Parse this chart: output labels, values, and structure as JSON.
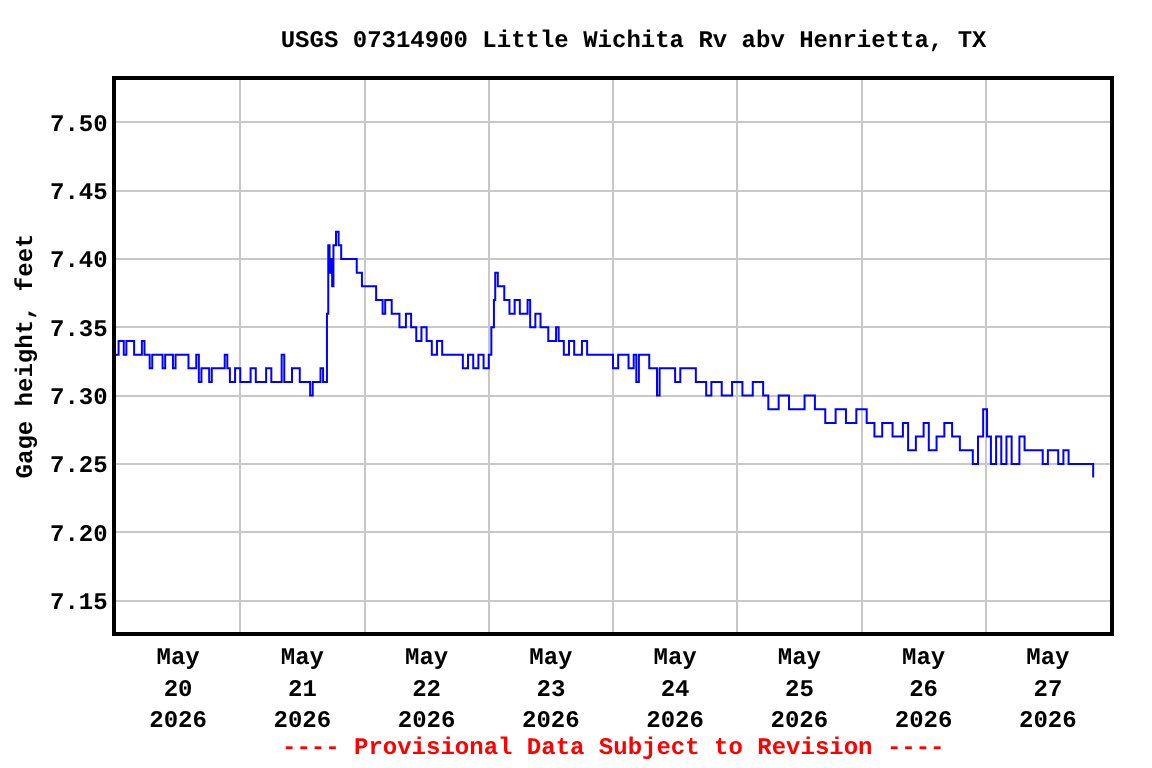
{
  "chart_data": {
    "type": "step",
    "title": "USGS 07314900 Little Wichita Rv abv Henrietta, TX",
    "ylabel": "Gage height, feet",
    "annotations": [
      "---- Provisional Data Subject to Revision ----"
    ],
    "series": [
      {
        "color": "#0000ff",
        "x": [
          "2026-05-20T00:00",
          "2026-05-20T00:30",
          "2026-05-20T01:30",
          "2026-05-20T02:00",
          "2026-05-20T03:30",
          "2026-05-20T05:00",
          "2026-05-20T05:30",
          "2026-05-20T06:30",
          "2026-05-20T07:00",
          "2026-05-20T09:00",
          "2026-05-20T09:30",
          "2026-05-20T11:00",
          "2026-05-20T11:30",
          "2026-05-20T14:00",
          "2026-05-20T15:30",
          "2026-05-20T16:00",
          "2026-05-20T16:30",
          "2026-05-20T18:00",
          "2026-05-20T18:30",
          "2026-05-20T21:00",
          "2026-05-20T21:30",
          "2026-05-20T22:00",
          "2026-05-20T23:00",
          "2026-05-21T00:00",
          "2026-05-21T02:00",
          "2026-05-21T03:00",
          "2026-05-21T05:00",
          "2026-05-21T06:00",
          "2026-05-21T08:00",
          "2026-05-21T08:30",
          "2026-05-21T10:00",
          "2026-05-21T11:30",
          "2026-05-21T13:30",
          "2026-05-21T14:00",
          "2026-05-21T15:30",
          "2026-05-21T16:00",
          "2026-05-21T16:45",
          "2026-05-21T17:00",
          "2026-05-21T17:15",
          "2026-05-21T17:30",
          "2026-05-21T17:45",
          "2026-05-21T18:00",
          "2026-05-21T18:30",
          "2026-05-21T19:00",
          "2026-05-21T19:30",
          "2026-05-21T22:30",
          "2026-05-21T23:30",
          "2026-05-22T02:15",
          "2026-05-22T03:30",
          "2026-05-22T04:00",
          "2026-05-22T05:15",
          "2026-05-22T06:45",
          "2026-05-22T08:00",
          "2026-05-22T09:00",
          "2026-05-22T10:00",
          "2026-05-22T11:00",
          "2026-05-22T12:00",
          "2026-05-22T13:00",
          "2026-05-22T14:00",
          "2026-05-22T15:00",
          "2026-05-22T19:00",
          "2026-05-22T20:00",
          "2026-05-22T21:00",
          "2026-05-22T22:00",
          "2026-05-22T23:00",
          "2026-05-23T00:00",
          "2026-05-23T00:30",
          "2026-05-23T01:00",
          "2026-05-23T01:15",
          "2026-05-23T01:45",
          "2026-05-23T03:00",
          "2026-05-23T04:00",
          "2026-05-23T05:00",
          "2026-05-23T06:00",
          "2026-05-23T07:30",
          "2026-05-23T08:00",
          "2026-05-23T09:00",
          "2026-05-23T10:00",
          "2026-05-23T11:30",
          "2026-05-23T13:00",
          "2026-05-23T13:30",
          "2026-05-23T14:30",
          "2026-05-23T15:30",
          "2026-05-23T16:30",
          "2026-05-23T18:00",
          "2026-05-23T19:00",
          "2026-05-24T00:00",
          "2026-05-24T01:00",
          "2026-05-24T03:00",
          "2026-05-24T04:00",
          "2026-05-24T04:30",
          "2026-05-24T05:00",
          "2026-05-24T07:00",
          "2026-05-24T08:30",
          "2026-05-24T09:00",
          "2026-05-24T12:00",
          "2026-05-24T13:00",
          "2026-05-24T16:00",
          "2026-05-24T18:00",
          "2026-05-24T19:00",
          "2026-05-24T21:00",
          "2026-05-24T23:00",
          "2026-05-25T01:00",
          "2026-05-25T03:00",
          "2026-05-25T05:00",
          "2026-05-25T06:00",
          "2026-05-25T08:00",
          "2026-05-25T10:00",
          "2026-05-25T13:00",
          "2026-05-25T15:00",
          "2026-05-25T17:00",
          "2026-05-25T19:00",
          "2026-05-25T21:00",
          "2026-05-25T23:00",
          "2026-05-26T01:00",
          "2026-05-26T02:30",
          "2026-05-26T04:00",
          "2026-05-26T06:00",
          "2026-05-26T08:00",
          "2026-05-26T09:00",
          "2026-05-26T10:30",
          "2026-05-26T12:00",
          "2026-05-26T13:00",
          "2026-05-26T14:30",
          "2026-05-26T16:00",
          "2026-05-26T17:30",
          "2026-05-26T19:00",
          "2026-05-26T21:30",
          "2026-05-26T22:30",
          "2026-05-26T23:30",
          "2026-05-27T00:15",
          "2026-05-27T01:00",
          "2026-05-27T02:00",
          "2026-05-27T03:00",
          "2026-05-27T04:00",
          "2026-05-27T05:00",
          "2026-05-27T06:30",
          "2026-05-27T07:30",
          "2026-05-27T11:00",
          "2026-05-27T12:00",
          "2026-05-27T14:00",
          "2026-05-27T15:00",
          "2026-05-27T16:00",
          "2026-05-27T20:30",
          "2026-05-27T20:45"
        ],
        "values": [
          7.33,
          7.34,
          7.33,
          7.34,
          7.33,
          7.34,
          7.33,
          7.32,
          7.33,
          7.32,
          7.33,
          7.32,
          7.33,
          7.32,
          7.33,
          7.31,
          7.32,
          7.31,
          7.32,
          7.33,
          7.32,
          7.31,
          7.32,
          7.31,
          7.32,
          7.31,
          7.32,
          7.31,
          7.33,
          7.31,
          7.32,
          7.31,
          7.3,
          7.31,
          7.32,
          7.31,
          7.36,
          7.41,
          7.39,
          7.4,
          7.38,
          7.41,
          7.42,
          7.41,
          7.4,
          7.39,
          7.38,
          7.37,
          7.36,
          7.37,
          7.36,
          7.35,
          7.36,
          7.35,
          7.34,
          7.35,
          7.34,
          7.33,
          7.34,
          7.33,
          7.32,
          7.33,
          7.32,
          7.33,
          7.32,
          7.33,
          7.35,
          7.37,
          7.39,
          7.38,
          7.37,
          7.36,
          7.37,
          7.36,
          7.37,
          7.35,
          7.36,
          7.35,
          7.34,
          7.35,
          7.34,
          7.33,
          7.34,
          7.33,
          7.34,
          7.33,
          7.32,
          7.33,
          7.32,
          7.33,
          7.31,
          7.33,
          7.32,
          7.3,
          7.32,
          7.31,
          7.32,
          7.31,
          7.3,
          7.31,
          7.3,
          7.31,
          7.3,
          7.31,
          7.3,
          7.29,
          7.3,
          7.29,
          7.3,
          7.29,
          7.28,
          7.29,
          7.28,
          7.29,
          7.28,
          7.27,
          7.28,
          7.27,
          7.28,
          7.26,
          7.27,
          7.28,
          7.26,
          7.27,
          7.28,
          7.27,
          7.26,
          7.25,
          7.27,
          7.29,
          7.27,
          7.25,
          7.27,
          7.25,
          7.27,
          7.25,
          7.27,
          7.26,
          7.25,
          7.26,
          7.25,
          7.26,
          7.25,
          7.25,
          7.24
        ]
      }
    ],
    "xlim": [
      "2026-05-20T00:00",
      "2026-05-28T00:00"
    ],
    "xticks": [
      {
        "value": "2026-05-20T00:00",
        "label": null
      },
      {
        "value": "2026-05-20T12:00",
        "label": "May\n20\n2026"
      },
      {
        "value": "2026-05-21T00:00",
        "label": null
      },
      {
        "value": "2026-05-21T12:00",
        "label": "May\n21\n2026"
      },
      {
        "value": "2026-05-22T00:00",
        "label": null
      },
      {
        "value": "2026-05-22T12:00",
        "label": "May\n22\n2026"
      },
      {
        "value": "2026-05-23T00:00",
        "label": null
      },
      {
        "value": "2026-05-23T12:00",
        "label": "May\n23\n2026"
      },
      {
        "value": "2026-05-24T00:00",
        "label": null
      },
      {
        "value": "2026-05-24T12:00",
        "label": "May\n24\n2026"
      },
      {
        "value": "2026-05-25T00:00",
        "label": null
      },
      {
        "value": "2026-05-25T12:00",
        "label": "May\n25\n2026"
      },
      {
        "value": "2026-05-26T00:00",
        "label": null
      },
      {
        "value": "2026-05-26T12:00",
        "label": "May\n26\n2026"
      },
      {
        "value": "2026-05-27T00:00",
        "label": null
      },
      {
        "value": "2026-05-27T12:00",
        "label": "May\n27\n2026"
      },
      {
        "value": "2026-05-28T00:00",
        "label": null
      }
    ],
    "ylim": [
      7.127,
      7.531
    ],
    "yticks": [
      {
        "value": 7.15,
        "label": "7.15"
      },
      {
        "value": 7.2,
        "label": "7.20"
      },
      {
        "value": 7.25,
        "label": "7.25"
      },
      {
        "value": 7.3,
        "label": "7.30"
      },
      {
        "value": 7.35,
        "label": "7.35"
      },
      {
        "value": 7.4,
        "label": "7.40"
      },
      {
        "value": 7.45,
        "label": "7.45"
      },
      {
        "value": 7.5,
        "label": "7.50"
      }
    ],
    "grid": true
  }
}
